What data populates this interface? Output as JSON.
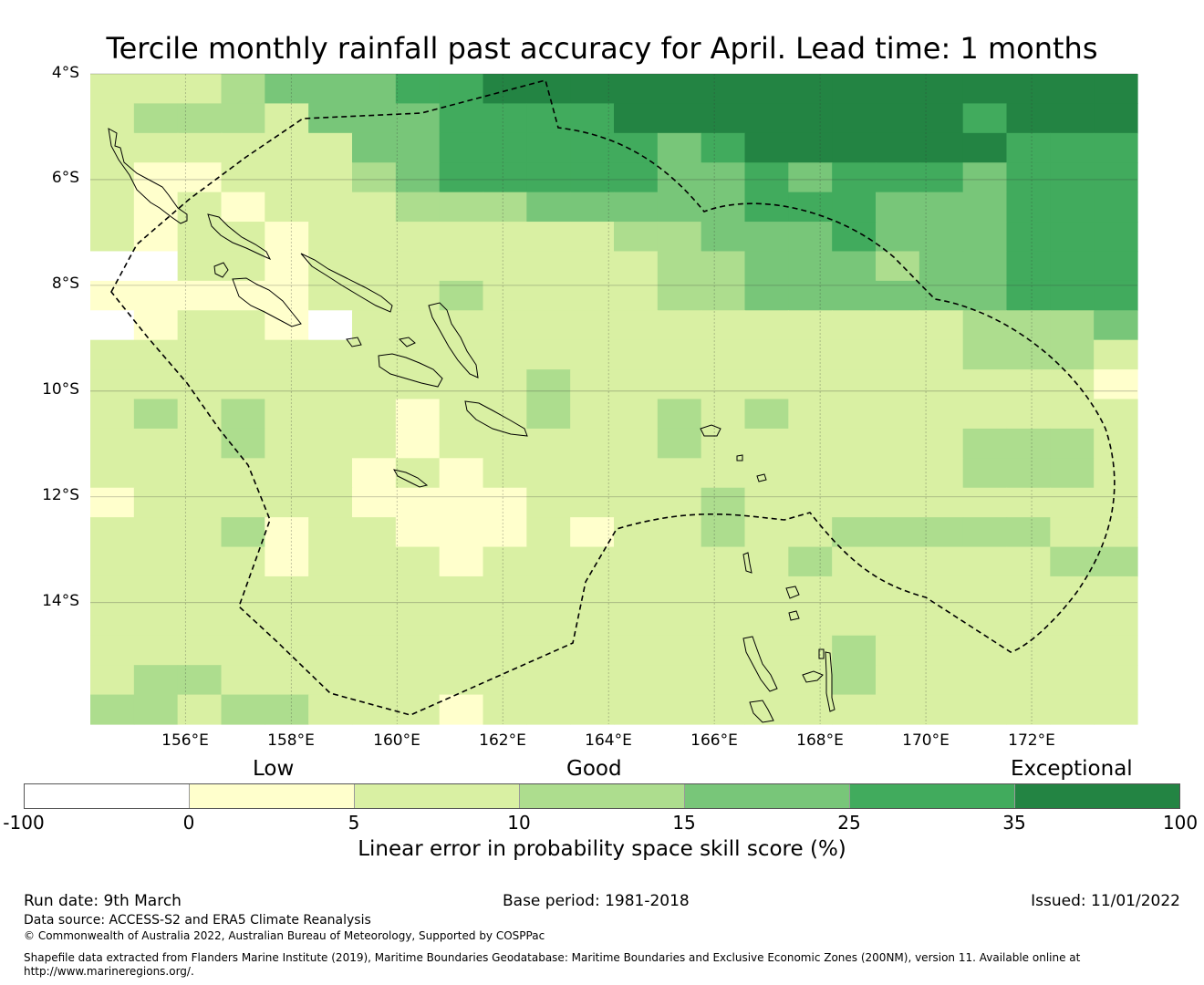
{
  "title": "Tercile monthly rainfall past accuracy for April. Lead time: 1 months",
  "map": {
    "lat_labels": [
      "4°S",
      "6°S",
      "8°S",
      "10°S",
      "12°S",
      "14°S"
    ],
    "lon_labels": [
      "156°E",
      "158°E",
      "160°E",
      "162°E",
      "164°E",
      "166°E",
      "168°E",
      "170°E",
      "172°E"
    ],
    "lon_range": [
      154.2,
      174.0
    ],
    "lat_range": [
      -4.0,
      -16.3
    ],
    "cell_size_deg": 0.83,
    "grid_rows": 22,
    "grid_cols": 24,
    "scale_colors": [
      "#ffffff",
      "#ffffcc",
      "#d9f0a3",
      "#addd8e",
      "#78c679",
      "#41ab5d",
      "#238443"
    ],
    "skill_category_grid": [
      "222344455666666666666666",
      "233324445555666666665666",
      "222222445555545666666555",
      "211222345555544545554555",
      "212122233344444555444555",
      "212212222222334445444555",
      "002212222222233444344555",
      "111112223222233444444555",
      "012210222222222222223334",
      "222222222222222222223332",
      "222222222232222222222221",
      "232322212232232322222222",
      "222322212222232222223332",
      "222222121222222222223332",
      "122222111122223222222222",
      "222312211121223223333322",
      "222212221222222232222233",
      "222222222222222222222222",
      "222222222222222222222222",
      "222222222222222223222222",
      "233222222222222223222222",
      "332332221222222222222222"
    ]
  },
  "category_labels": {
    "low": "Low",
    "good": "Good",
    "exceptional": "Exceptional"
  },
  "colorbar": {
    "ticks": [
      "-100",
      "0",
      "5",
      "10",
      "15",
      "25",
      "35",
      "100"
    ],
    "label": "Linear error in probability space skill score (%)"
  },
  "footer": {
    "run_date": "Run date: 9th March",
    "base_period": "Base period: 1981-2018",
    "issued": "Issued: 11/01/2022",
    "data_source": "Data source: ACCESS-S2 and ERA5 Climate Reanalysis",
    "copyright": "© Commonwealth of Australia 2022, Australian Bureau of Meteorology, Supported by COSPPac",
    "shapefile_line1": "Shapefile data extracted from Flanders Marine Institute (2019), Maritime Boundaries Geodatabase: Maritime Boundaries and Exclusive Economic Zones (200NM), version 11. Available online at",
    "shapefile_line2": "http://www.marineregions.org/."
  }
}
